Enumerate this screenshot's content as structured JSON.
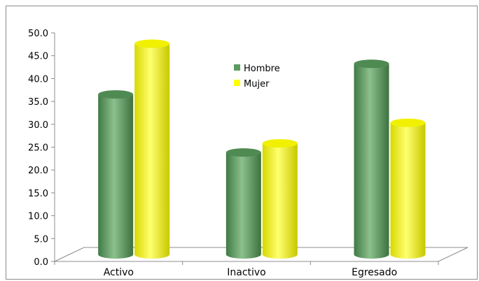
{
  "chart_data": {
    "type": "bar",
    "style": "3d-cylinder",
    "categories": [
      "Activo",
      "Inactivo",
      "Egresado"
    ],
    "series": [
      {
        "name": "Hombre",
        "values": [
          35.0,
          22.3,
          41.7
        ],
        "color": "#5e9a60"
      },
      {
        "name": "Mujer",
        "values": [
          46.1,
          24.3,
          28.8
        ],
        "color": "#ffff00"
      }
    ],
    "ylim": [
      0,
      50
    ],
    "yticks": [
      "0.0",
      "5.0",
      "10.0",
      "15.0",
      "20.0",
      "25.0",
      "30.0",
      "35.0",
      "40.0",
      "45.0",
      "50.0"
    ],
    "grid": false,
    "legend_position": "top-center"
  }
}
